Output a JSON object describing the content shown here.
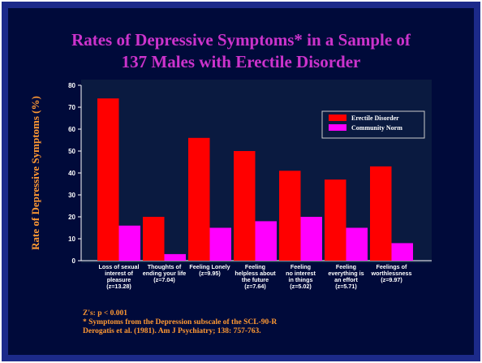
{
  "chart_data": {
    "type": "bar",
    "title_lines": [
      "Rates of Depressive Symptoms* in a Sample of",
      "137 Males with Erectile Disorder"
    ],
    "y_label": "Rate of Depressive Symptoms (%)",
    "categories": [
      [
        "Loss of sexual",
        "interest of",
        "pleasure",
        "(z=13.28)"
      ],
      [
        "Thoughts of",
        "ending your life",
        "(z=7.04)"
      ],
      [
        "Feeling Lonely",
        "(z=9.95)"
      ],
      [
        "Feeling",
        "helpless about",
        "the future",
        "(z=7.64)"
      ],
      [
        "Feeling",
        "no interest",
        "in things",
        "(z=5.02)"
      ],
      [
        "Feeling",
        "everything is",
        "an effort",
        "(z=5.71)"
      ],
      [
        "Feelings of",
        "worthlessness",
        "(z=9.97)"
      ]
    ],
    "series": [
      {
        "name": "Erectile Disorder",
        "color": "#ff0000",
        "values": [
          74,
          20,
          56,
          50,
          41,
          37,
          43
        ]
      },
      {
        "name": "Community Norm",
        "color": "#ff00ff",
        "values": [
          16,
          3,
          15,
          18,
          20,
          15,
          8
        ]
      }
    ],
    "ylim": [
      0,
      80
    ],
    "yticks": [
      0,
      10,
      20,
      30,
      40,
      50,
      60,
      70,
      80
    ],
    "grid": false,
    "legend": "upper right",
    "footnotes": [
      "Z's: p < 0.001",
      "* Symptoms from the Depression subscale of the SCL-90-R",
      "Derogatis et al. (1981). Am J Psychiatry; 138: 757-763."
    ]
  }
}
